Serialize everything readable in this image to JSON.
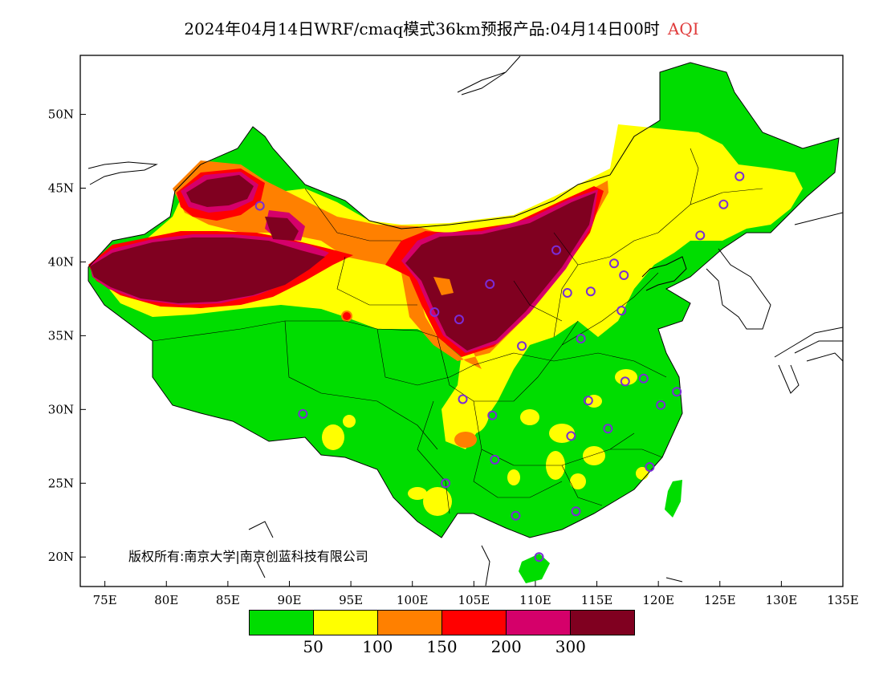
{
  "title": {
    "main": "2024年04月14日WRF/cmaq模式36km预报产品:04月14日00时",
    "variable": "AQI"
  },
  "axes": {
    "longitude_ticks": [
      "75E",
      "80E",
      "85E",
      "90E",
      "95E",
      "100E",
      "105E",
      "110E",
      "115E",
      "120E",
      "125E",
      "130E",
      "135E"
    ],
    "latitude_ticks": [
      "50N",
      "45N",
      "40N",
      "35N",
      "30N",
      "25N",
      "20N"
    ],
    "lon_range": [
      73,
      135
    ],
    "lat_range": [
      18,
      54
    ]
  },
  "copyright": "版权所有:南京大学|南京创蓝科技有限公司",
  "legend": {
    "colors": [
      "#00dd00",
      "#ffff00",
      "#ff8000",
      "#ff0000",
      "#d5006a",
      "#800020"
    ],
    "labels": [
      "50",
      "100",
      "150",
      "200",
      "300"
    ]
  },
  "city_markers": [
    {
      "lon": 87.6,
      "lat": 43.8
    },
    {
      "lon": 101.8,
      "lat": 36.6
    },
    {
      "lon": 103.8,
      "lat": 36.1
    },
    {
      "lon": 106.3,
      "lat": 38.5
    },
    {
      "lon": 111.7,
      "lat": 40.8
    },
    {
      "lon": 108.9,
      "lat": 34.3
    },
    {
      "lon": 112.6,
      "lat": 37.9
    },
    {
      "lon": 114.5,
      "lat": 38.0
    },
    {
      "lon": 116.4,
      "lat": 39.9
    },
    {
      "lon": 117.2,
      "lat": 39.1
    },
    {
      "lon": 117.0,
      "lat": 36.7
    },
    {
      "lon": 113.7,
      "lat": 34.8
    },
    {
      "lon": 123.4,
      "lat": 41.8
    },
    {
      "lon": 125.3,
      "lat": 43.9
    },
    {
      "lon": 126.6,
      "lat": 45.8
    },
    {
      "lon": 117.3,
      "lat": 31.9
    },
    {
      "lon": 118.8,
      "lat": 32.1
    },
    {
      "lon": 121.5,
      "lat": 31.2
    },
    {
      "lon": 120.2,
      "lat": 30.3
    },
    {
      "lon": 114.3,
      "lat": 30.6
    },
    {
      "lon": 112.9,
      "lat": 28.2
    },
    {
      "lon": 115.9,
      "lat": 28.7
    },
    {
      "lon": 119.3,
      "lat": 26.1
    },
    {
      "lon": 113.3,
      "lat": 23.1
    },
    {
      "lon": 108.4,
      "lat": 22.8
    },
    {
      "lon": 110.3,
      "lat": 20.0
    },
    {
      "lon": 106.7,
      "lat": 26.6
    },
    {
      "lon": 102.7,
      "lat": 25.0
    },
    {
      "lon": 104.1,
      "lat": 30.7
    },
    {
      "lon": 106.5,
      "lat": 29.6
    },
    {
      "lon": 91.1,
      "lat": 29.7
    }
  ]
}
